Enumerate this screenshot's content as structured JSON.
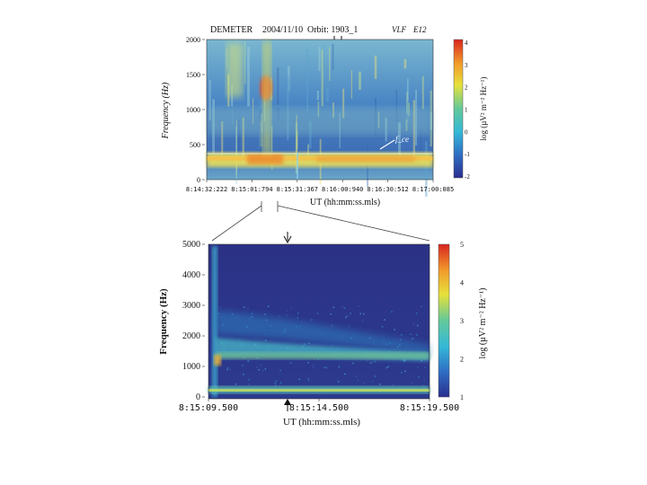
{
  "chart_data": [
    {
      "type": "heatmap",
      "header": {
        "instrument": "DEMETER",
        "date": "2004/11/10",
        "orbit_label": "Orbit: 1903_1",
        "channel": "VLF",
        "sensor": "E12"
      },
      "ylabel": "Frequency (Hz)",
      "xlabel": "UT (hh:mm:ss.mls)",
      "yticks": [
        "0",
        "500",
        "1000",
        "1500",
        "2000"
      ],
      "ylim": [
        0,
        2000
      ],
      "xticks": [
        "8:14:32:222",
        "8:15:01:794",
        "8:15:31:367",
        "8:16:00:940",
        "8:16:30:512",
        "8:17:00:085"
      ],
      "colorbar": {
        "label": "log (µV² m⁻² Hz⁻¹)",
        "ticks": [
          "4",
          "3",
          "2",
          "1",
          "0",
          "-1",
          "-2"
        ],
        "range": [
          -2,
          4
        ]
      },
      "annotation": "f_ce"
    },
    {
      "type": "heatmap",
      "ylabel": "Frequency (Hz)",
      "xlabel": "UT (hh:mm:ss.mls)",
      "yticks": [
        "0",
        "1000",
        "2000",
        "3000",
        "4000",
        "5000"
      ],
      "ylim": [
        0,
        5000
      ],
      "xticks": [
        "8:15:09.500",
        "8:15:14.500",
        "8:15:19.500"
      ],
      "colorbar": {
        "label": "log (µV² m⁻² Hz⁻¹)",
        "ticks": [
          "5",
          "4",
          "3",
          "2",
          "1"
        ],
        "range": [
          1,
          5
        ]
      }
    }
  ]
}
